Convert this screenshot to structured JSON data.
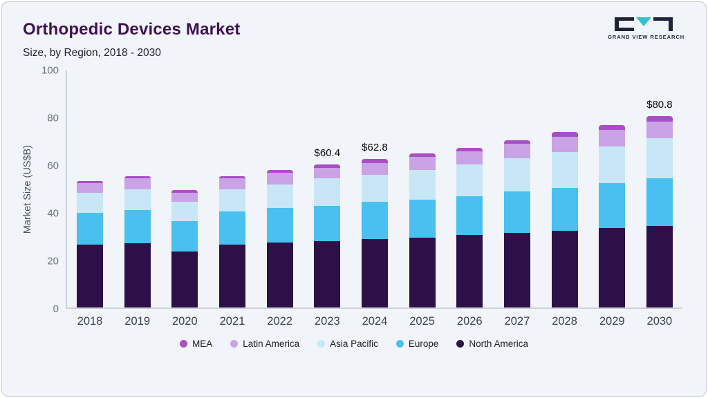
{
  "page": {
    "title": "Orthopedic Devices Market",
    "subtitle": "Size, by Region, 2018 - 2030"
  },
  "logo": {
    "text": "GRAND VIEW RESEARCH",
    "dark_color": "#1e2538",
    "teal_color": "#35c0cf"
  },
  "chart_data": {
    "type": "bar",
    "stacked": true,
    "title": "Orthopedic Devices Market Size, by Region, 2018 - 2030",
    "xlabel": "",
    "ylabel": "Market Size (US$B)",
    "ylim": [
      0,
      100
    ],
    "yticks": [
      0,
      20,
      40,
      60,
      80,
      100
    ],
    "grid": false,
    "legend_position": "bottom",
    "categories": [
      "2018",
      "2019",
      "2020",
      "2021",
      "2022",
      "2023",
      "2024",
      "2025",
      "2026",
      "2027",
      "2028",
      "2029",
      "2030"
    ],
    "series": [
      {
        "name": "North America",
        "color": "#2e1048",
        "values": [
          26.5,
          27.0,
          23.5,
          26.5,
          27.5,
          28.0,
          29.0,
          29.5,
          30.5,
          31.5,
          32.5,
          33.5,
          34.5
        ]
      },
      {
        "name": "Europe",
        "color": "#49c0ef",
        "values": [
          13.5,
          14.0,
          13.0,
          14.0,
          14.5,
          15.0,
          15.5,
          16.0,
          16.5,
          17.5,
          18.0,
          19.0,
          20.0
        ]
      },
      {
        "name": "Asia Pacific",
        "color": "#c7e7f7",
        "values": [
          8.5,
          9.0,
          8.0,
          9.5,
          10.0,
          11.5,
          11.5,
          12.5,
          13.5,
          14.0,
          15.0,
          15.5,
          17.0
        ]
      },
      {
        "name": "Latin America",
        "color": "#c9a3e5",
        "values": [
          4.0,
          4.5,
          4.0,
          4.5,
          4.8,
          4.4,
          5.0,
          5.5,
          5.5,
          6.0,
          6.5,
          7.0,
          7.0
        ]
      },
      {
        "name": "MEA",
        "color": "#a94fc4",
        "values": [
          1.0,
          1.0,
          1.0,
          1.0,
          1.2,
          1.5,
          1.8,
          1.5,
          1.5,
          1.5,
          2.0,
          2.0,
          2.3
        ]
      }
    ],
    "totals": [
      53.5,
      55.5,
      49.5,
      55.5,
      58.0,
      60.4,
      62.8,
      65.0,
      67.5,
      70.5,
      74.0,
      77.0,
      80.8
    ],
    "annotations": [
      {
        "category": "2023",
        "label": "$60.4"
      },
      {
        "category": "2024",
        "label": "$62.8"
      },
      {
        "category": "2030",
        "label": "$80.8"
      }
    ],
    "legend": [
      "MEA",
      "Latin America",
      "Asia Pacific",
      "Europe",
      "North America"
    ]
  }
}
